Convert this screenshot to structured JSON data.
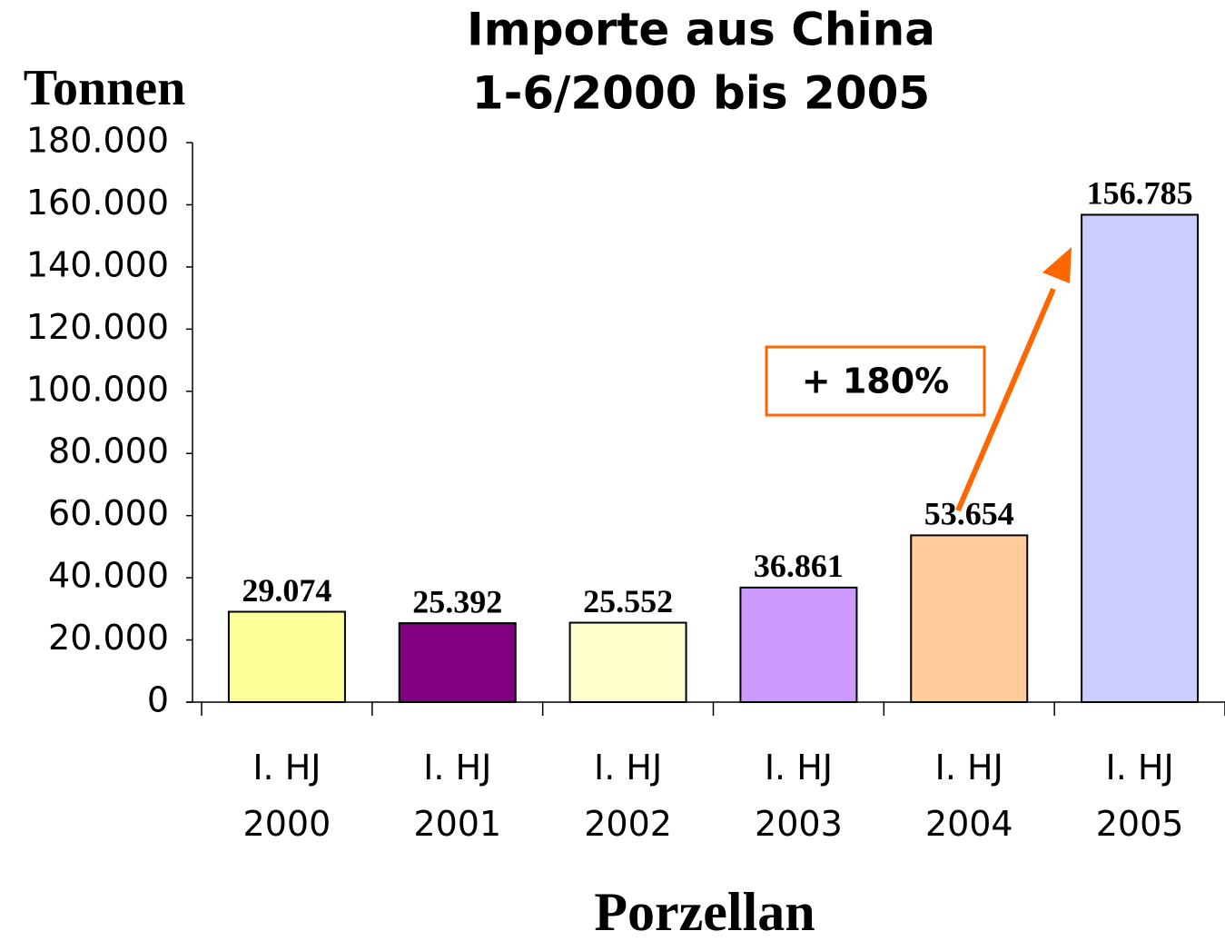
{
  "chart_data": {
    "type": "bar",
    "title": "Importe aus China",
    "subtitle": "1-6/2000 bis 2005",
    "y_label": "Tonnen",
    "x_label": "Porzellan",
    "categories": [
      "I. HJ 2000",
      "I. HJ 2001",
      "I. HJ 2002",
      "I. HJ 2003",
      "I. HJ 2004",
      "I. HJ 2005"
    ],
    "values": [
      29074,
      25392,
      25552,
      36861,
      53654,
      156785
    ],
    "value_labels": [
      "29.074",
      "25.392",
      "25.552",
      "36.861",
      "53.654",
      "156.785"
    ],
    "colors": [
      "#ffff99",
      "#800080",
      "#ffffcc",
      "#cc99ff",
      "#ffcc99",
      "#ccccff"
    ],
    "ylim": [
      0,
      180000
    ],
    "yticks": [
      0,
      {
        "value": 20000,
        "label": "20.000"
      },
      {
        "value": 40000,
        "label": "40.000"
      },
      {
        "value": 60000,
        "label": "60.000"
      },
      {
        "value": 80000,
        "label": "80.000"
      },
      {
        "value": 100000,
        "label": "100.000"
      },
      {
        "value": 120000,
        "label": "120.000"
      },
      {
        "value": 140000,
        "label": "140.000"
      },
      {
        "value": 160000,
        "label": "160.000"
      },
      {
        "value": 180000,
        "label": "180.000"
      }
    ],
    "grid": false,
    "annotation": "+ 180%"
  }
}
